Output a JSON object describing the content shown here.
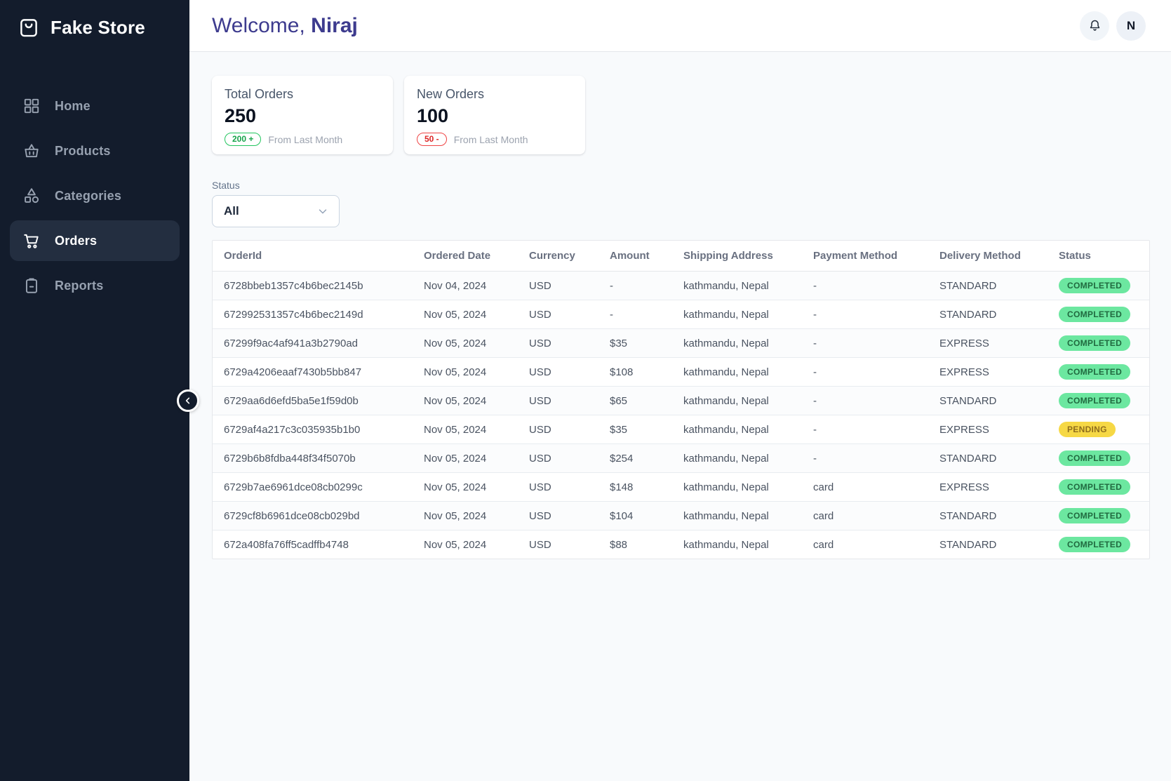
{
  "app_title": "Fake Store",
  "sidebar": {
    "logo": "Fake Store",
    "items": [
      {
        "label": "Home",
        "icon": "dashboard-icon",
        "active": false
      },
      {
        "label": "Products",
        "icon": "basket-icon",
        "active": false
      },
      {
        "label": "Categories",
        "icon": "category-icon",
        "active": false
      },
      {
        "label": "Orders",
        "icon": "cart-icon",
        "active": true
      },
      {
        "label": "Reports",
        "icon": "clipboard-icon",
        "active": false
      }
    ]
  },
  "header": {
    "greeting": "Welcome,",
    "username": "Niraj",
    "avatar_initial": "N"
  },
  "stats": [
    {
      "title": "Total Orders",
      "value": "250",
      "badge": "200 +",
      "badge_type": "positive",
      "caption": "From Last Month"
    },
    {
      "title": "New Orders",
      "value": "100",
      "badge": "50 -",
      "badge_type": "negative",
      "caption": "From Last Month"
    }
  ],
  "filter": {
    "label": "Status",
    "selected": "All"
  },
  "table": {
    "columns": [
      "OrderId",
      "Ordered Date",
      "Currency",
      "Amount",
      "Shipping Address",
      "Payment Method",
      "Delivery Method",
      "Status"
    ],
    "rows": [
      {
        "order_id": "6728bbeb1357c4b6bec2145b",
        "ordered_date": "Nov 04, 2024",
        "currency": "USD",
        "amount": "-",
        "shipping_address": "kathmandu, Nepal",
        "payment_method": "-",
        "delivery_method": "STANDARD",
        "status": "COMPLETED"
      },
      {
        "order_id": "672992531357c4b6bec2149d",
        "ordered_date": "Nov 05, 2024",
        "currency": "USD",
        "amount": "-",
        "shipping_address": "kathmandu, Nepal",
        "payment_method": "-",
        "delivery_method": "STANDARD",
        "status": "COMPLETED"
      },
      {
        "order_id": "67299f9ac4af941a3b2790ad",
        "ordered_date": "Nov 05, 2024",
        "currency": "USD",
        "amount": "$35",
        "shipping_address": "kathmandu, Nepal",
        "payment_method": "-",
        "delivery_method": "EXPRESS",
        "status": "COMPLETED"
      },
      {
        "order_id": "6729a4206eaaf7430b5bb847",
        "ordered_date": "Nov 05, 2024",
        "currency": "USD",
        "amount": "$108",
        "shipping_address": "kathmandu, Nepal",
        "payment_method": "-",
        "delivery_method": "EXPRESS",
        "status": "COMPLETED"
      },
      {
        "order_id": "6729aa6d6efd5ba5e1f59d0b",
        "ordered_date": "Nov 05, 2024",
        "currency": "USD",
        "amount": "$65",
        "shipping_address": "kathmandu, Nepal",
        "payment_method": "-",
        "delivery_method": "STANDARD",
        "status": "COMPLETED"
      },
      {
        "order_id": "6729af4a217c3c035935b1b0",
        "ordered_date": "Nov 05, 2024",
        "currency": "USD",
        "amount": "$35",
        "shipping_address": "kathmandu, Nepal",
        "payment_method": "-",
        "delivery_method": "EXPRESS",
        "status": "PENDING"
      },
      {
        "order_id": "6729b6b8fdba448f34f5070b",
        "ordered_date": "Nov 05, 2024",
        "currency": "USD",
        "amount": "$254",
        "shipping_address": "kathmandu, Nepal",
        "payment_method": "-",
        "delivery_method": "STANDARD",
        "status": "COMPLETED"
      },
      {
        "order_id": "6729b7ae6961dce08cb0299c",
        "ordered_date": "Nov 05, 2024",
        "currency": "USD",
        "amount": "$148",
        "shipping_address": "kathmandu, Nepal",
        "payment_method": "card",
        "delivery_method": "EXPRESS",
        "status": "COMPLETED"
      },
      {
        "order_id": "6729cf8b6961dce08cb029bd",
        "ordered_date": "Nov 05, 2024",
        "currency": "USD",
        "amount": "$104",
        "shipping_address": "kathmandu, Nepal",
        "payment_method": "card",
        "delivery_method": "STANDARD",
        "status": "COMPLETED"
      },
      {
        "order_id": "672a408fa76ff5cadffb4748",
        "ordered_date": "Nov 05, 2024",
        "currency": "USD",
        "amount": "$88",
        "shipping_address": "kathmandu, Nepal",
        "payment_method": "card",
        "delivery_method": "STANDARD",
        "status": "COMPLETED"
      }
    ]
  },
  "colors": {
    "sidebar_bg": "#131c2c",
    "sidebar_active_bg": "#232e40",
    "accent_heading": "#3d3b8e",
    "status_completed_bg": "#6ce7a0",
    "status_pending_bg": "#f6d845",
    "badge_positive": "#16a34a",
    "badge_negative": "#dc2626"
  }
}
